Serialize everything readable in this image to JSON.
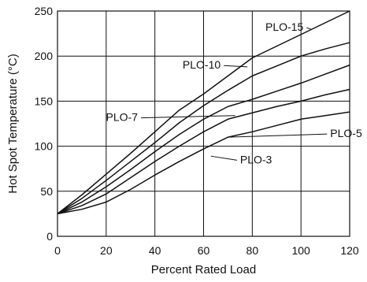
{
  "chart_data": {
    "type": "line",
    "xlabel": "Percent Rated Load",
    "ylabel": "Hot Spot Temperature (°C)",
    "xlim": [
      0,
      120
    ],
    "ylim": [
      0,
      250
    ],
    "xticks": [
      0,
      20,
      40,
      60,
      80,
      100,
      120
    ],
    "yticks": [
      0,
      50,
      100,
      150,
      200,
      250
    ],
    "grid": true,
    "legend": "inline labels with leader lines",
    "colors": {
      "line": "#111111",
      "grid": "#111111",
      "background": "#ffffff"
    },
    "series": [
      {
        "name": "PLO-15",
        "x": [
          0,
          10,
          20,
          30,
          40,
          50,
          60,
          70,
          80,
          90,
          100,
          110,
          120
        ],
        "values": [
          25,
          46,
          69,
          92,
          116,
          140,
          158,
          178,
          198,
          211,
          224,
          237,
          250
        ]
      },
      {
        "name": "PLO-10",
        "x": [
          0,
          10,
          20,
          30,
          40,
          50,
          60,
          70,
          80,
          90,
          100,
          110,
          120
        ],
        "values": [
          25,
          42,
          62,
          83,
          104,
          126,
          145,
          162,
          178,
          189,
          200,
          208,
          215
        ]
      },
      {
        "name": "PLO-7",
        "x": [
          0,
          10,
          20,
          30,
          40,
          50,
          60,
          70,
          80,
          90,
          100,
          110,
          120
        ],
        "values": [
          25,
          38,
          55,
          74,
          94,
          113,
          130,
          144,
          152,
          161,
          170,
          180,
          190
        ]
      },
      {
        "name": "PLO-5",
        "x": [
          0,
          10,
          20,
          30,
          40,
          50,
          60,
          70,
          80,
          90,
          100,
          110,
          120
        ],
        "values": [
          25,
          34,
          47,
          65,
          83,
          100,
          116,
          130,
          137,
          144,
          150,
          157,
          163
        ]
      },
      {
        "name": "PLO-3",
        "x": [
          0,
          10,
          20,
          30,
          40,
          50,
          60,
          70,
          80,
          90,
          100,
          110,
          120
        ],
        "values": [
          25,
          30,
          38,
          52,
          68,
          83,
          97,
          110,
          116,
          123,
          130,
          134,
          138
        ]
      }
    ],
    "labels": [
      {
        "series": "PLO-15",
        "text": "PLO-15",
        "label_at": [
          101,
          228
        ],
        "leader_to": [
          104,
          230
        ]
      },
      {
        "series": "PLO-10",
        "text": "PLO-10",
        "label_at": [
          67,
          186
        ],
        "leader_to": [
          78,
          188
        ]
      },
      {
        "series": "PLO-7",
        "text": "PLO-7",
        "label_at": [
          33,
          128
        ],
        "leader_to": [
          73,
          134
        ]
      },
      {
        "series": "PLO-5",
        "text": "PLO-5",
        "label_at": [
          112,
          110
        ],
        "leader_to": [
          70,
          110
        ]
      },
      {
        "series": "PLO-3",
        "text": "PLO-3",
        "label_at": [
          75,
          81
        ],
        "leader_to": [
          63,
          89
        ]
      }
    ]
  }
}
